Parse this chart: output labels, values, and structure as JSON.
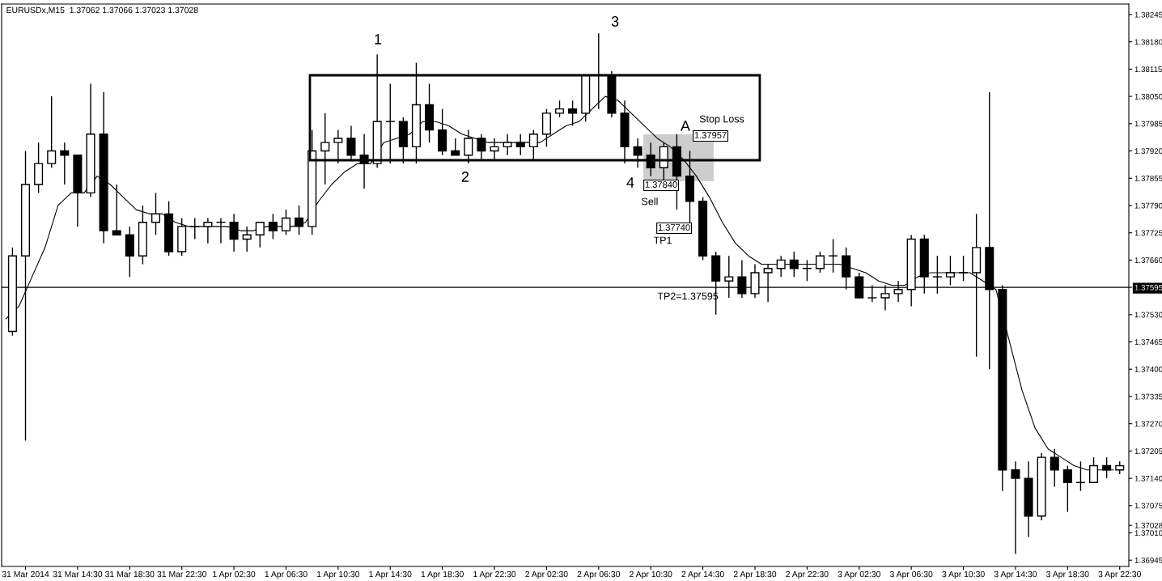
{
  "chart_data": {
    "type": "candlestick",
    "title": "EURUSDx,M15  1.37062 1.37066 1.37023 1.37028",
    "x": [
      "2014-03-31T09:30",
      "2014-03-31T10:30",
      "2014-03-31T11:30",
      "2014-03-31T12:30",
      "2014-03-31T13:30",
      "2014-03-31T14:30",
      "2014-03-31T15:30",
      "2014-03-31T16:30",
      "2014-03-31T17:30",
      "2014-03-31T18:30",
      "2014-03-31T19:30",
      "2014-03-31T20:30",
      "2014-03-31T21:30",
      "2014-03-31T22:30",
      "2014-03-31T23:30",
      "2014-04-01T00:30",
      "2014-04-01T01:30",
      "2014-04-01T02:30",
      "2014-04-01T03:30",
      "2014-04-01T04:30",
      "2014-04-01T05:30",
      "2014-04-01T06:30",
      "2014-04-01T07:30",
      "2014-04-01T08:30",
      "2014-04-01T09:30",
      "2014-04-01T10:30",
      "2014-04-01T11:30",
      "2014-04-01T12:30",
      "2014-04-01T13:30",
      "2014-04-01T14:30",
      "2014-04-01T15:30",
      "2014-04-01T16:30",
      "2014-04-01T17:30",
      "2014-04-01T18:30",
      "2014-04-01T19:30",
      "2014-04-01T20:30",
      "2014-04-01T21:30",
      "2014-04-01T22:30",
      "2014-04-01T23:30",
      "2014-04-02T00:30",
      "2014-04-02T01:30",
      "2014-04-02T02:30",
      "2014-04-02T03:30",
      "2014-04-02T04:30",
      "2014-04-02T05:30",
      "2014-04-02T06:30",
      "2014-04-02T07:30",
      "2014-04-02T08:30",
      "2014-04-02T09:30",
      "2014-04-02T10:30",
      "2014-04-02T11:30",
      "2014-04-02T12:30",
      "2014-04-02T13:30",
      "2014-04-02T14:30",
      "2014-04-02T15:30",
      "2014-04-02T16:30",
      "2014-04-02T17:30",
      "2014-04-02T18:30",
      "2014-04-02T19:30",
      "2014-04-02T20:30",
      "2014-04-02T21:30",
      "2014-04-02T22:30",
      "2014-04-02T23:30",
      "2014-04-03T00:30",
      "2014-04-03T01:30",
      "2014-04-03T02:30",
      "2014-04-03T03:30",
      "2014-04-03T04:30",
      "2014-04-03T05:30",
      "2014-04-03T06:30",
      "2014-04-03T07:30",
      "2014-04-03T08:30",
      "2014-04-03T09:30",
      "2014-04-03T10:30",
      "2014-04-03T11:30",
      "2014-04-03T12:30",
      "2014-04-03T13:30",
      "2014-04-03T14:30",
      "2014-04-03T15:30",
      "2014-04-03T16:30",
      "2014-04-03T17:30",
      "2014-04-03T18:30",
      "2014-04-03T19:30",
      "2014-04-03T20:30",
      "2014-04-03T21:30",
      "2014-04-03T22:30"
    ],
    "ohlc": [
      [
        1.3749,
        1.3769,
        1.3748,
        1.3767
      ],
      [
        1.3767,
        1.3792,
        1.3723,
        1.3784
      ],
      [
        1.3784,
        1.3794,
        1.3782,
        1.3789
      ],
      [
        1.3789,
        1.3805,
        1.3788,
        1.3792
      ],
      [
        1.3792,
        1.3794,
        1.3784,
        1.3791
      ],
      [
        1.3791,
        1.3791,
        1.3774,
        1.3782
      ],
      [
        1.3782,
        1.3808,
        1.3781,
        1.3796
      ],
      [
        1.3796,
        1.3806,
        1.377,
        1.3773
      ],
      [
        1.3773,
        1.3784,
        1.3772,
        1.3772
      ],
      [
        1.3772,
        1.3774,
        1.3762,
        1.3767
      ],
      [
        1.3767,
        1.3779,
        1.3765,
        1.3775
      ],
      [
        1.3775,
        1.3782,
        1.3772,
        1.3777
      ],
      [
        1.3777,
        1.378,
        1.3767,
        1.3768
      ],
      [
        1.3768,
        1.3776,
        1.3767,
        1.3774
      ],
      [
        1.3774,
        1.3776,
        1.3771,
        1.3774
      ],
      [
        1.3774,
        1.3776,
        1.377,
        1.3775
      ],
      [
        1.3775,
        1.3776,
        1.377,
        1.3775
      ],
      [
        1.3775,
        1.3777,
        1.3768,
        1.3771
      ],
      [
        1.3771,
        1.3774,
        1.3768,
        1.3772
      ],
      [
        1.3772,
        1.3775,
        1.3769,
        1.3775
      ],
      [
        1.3775,
        1.3777,
        1.3771,
        1.3773
      ],
      [
        1.3773,
        1.3778,
        1.3772,
        1.3776
      ],
      [
        1.3776,
        1.3779,
        1.3772,
        1.3774
      ],
      [
        1.3774,
        1.3797,
        1.3772,
        1.3792
      ],
      [
        1.3792,
        1.3801,
        1.3784,
        1.3794
      ],
      [
        1.3794,
        1.3797,
        1.3789,
        1.3795
      ],
      [
        1.3795,
        1.3798,
        1.379,
        1.3791
      ],
      [
        1.3791,
        1.3796,
        1.3783,
        1.3789
      ],
      [
        1.3789,
        1.3815,
        1.3788,
        1.3799
      ],
      [
        1.3799,
        1.3808,
        1.3789,
        1.3799
      ],
      [
        1.3799,
        1.38,
        1.3789,
        1.3793
      ],
      [
        1.3793,
        1.3813,
        1.3789,
        1.3803
      ],
      [
        1.3803,
        1.3808,
        1.3794,
        1.3797
      ],
      [
        1.3797,
        1.3802,
        1.3791,
        1.3792
      ],
      [
        1.3792,
        1.3795,
        1.3791,
        1.3791
      ],
      [
        1.3791,
        1.3797,
        1.3789,
        1.3795
      ],
      [
        1.3795,
        1.3796,
        1.379,
        1.3792
      ],
      [
        1.3792,
        1.3795,
        1.379,
        1.3793
      ],
      [
        1.3793,
        1.3796,
        1.3791,
        1.3794
      ],
      [
        1.3794,
        1.3796,
        1.3791,
        1.3793
      ],
      [
        1.3793,
        1.3797,
        1.379,
        1.3796
      ],
      [
        1.3796,
        1.3802,
        1.3793,
        1.3801
      ],
      [
        1.3801,
        1.3804,
        1.38,
        1.3802
      ],
      [
        1.3802,
        1.3804,
        1.3798,
        1.3801
      ],
      [
        1.3801,
        1.381,
        1.3799,
        1.381
      ],
      [
        1.381,
        1.382,
        1.3802,
        1.381
      ],
      [
        1.381,
        1.3811,
        1.38,
        1.3801
      ],
      [
        1.3801,
        1.3804,
        1.3789,
        1.3793
      ],
      [
        1.3793,
        1.3795,
        1.3788,
        1.3791
      ],
      [
        1.3791,
        1.3794,
        1.3786,
        1.3788
      ],
      [
        1.3788,
        1.3794,
        1.3784,
        1.3793
      ],
      [
        1.3793,
        1.3796,
        1.3778,
        1.3786
      ],
      [
        1.3786,
        1.3792,
        1.3774,
        1.378
      ],
      [
        1.378,
        1.3781,
        1.3766,
        1.3767
      ],
      [
        1.3767,
        1.3768,
        1.3753,
        1.3761
      ],
      [
        1.3761,
        1.3767,
        1.3757,
        1.3762
      ],
      [
        1.3762,
        1.3766,
        1.3757,
        1.3758
      ],
      [
        1.3758,
        1.3765,
        1.3757,
        1.3763
      ],
      [
        1.3763,
        1.3765,
        1.3756,
        1.3764
      ],
      [
        1.3764,
        1.3767,
        1.3762,
        1.3766
      ],
      [
        1.3766,
        1.3768,
        1.3762,
        1.3764
      ],
      [
        1.3764,
        1.3766,
        1.3761,
        1.3764
      ],
      [
        1.3764,
        1.3768,
        1.3763,
        1.3767
      ],
      [
        1.3767,
        1.3771,
        1.3763,
        1.3767
      ],
      [
        1.3767,
        1.3769,
        1.3759,
        1.3762
      ],
      [
        1.3762,
        1.3763,
        1.3757,
        1.3757
      ],
      [
        1.3757,
        1.376,
        1.3756,
        1.3757
      ],
      [
        1.3757,
        1.376,
        1.3754,
        1.3758
      ],
      [
        1.3758,
        1.3761,
        1.3756,
        1.3759
      ],
      [
        1.3759,
        1.3772,
        1.3755,
        1.3771
      ],
      [
        1.3771,
        1.3772,
        1.3758,
        1.3762
      ],
      [
        1.3762,
        1.3767,
        1.3758,
        1.3762
      ],
      [
        1.3762,
        1.3767,
        1.376,
        1.3763
      ],
      [
        1.3763,
        1.3767,
        1.3761,
        1.3763
      ],
      [
        1.3763,
        1.3777,
        1.3743,
        1.3769
      ],
      [
        1.3769,
        1.3806,
        1.374,
        1.3759
      ],
      [
        1.3759,
        1.376,
        1.3711,
        1.3716
      ],
      [
        1.3716,
        1.3718,
        1.3696,
        1.3714
      ],
      [
        1.3714,
        1.3718,
        1.37,
        1.3705
      ],
      [
        1.3705,
        1.372,
        1.3704,
        1.3719
      ],
      [
        1.3719,
        1.3721,
        1.3712,
        1.3716
      ],
      [
        1.3716,
        1.3717,
        1.3706,
        1.3713
      ],
      [
        1.3713,
        1.3718,
        1.3711,
        1.3713
      ],
      [
        1.3713,
        1.3719,
        1.3713,
        1.3717
      ],
      [
        1.3717,
        1.3719,
        1.3714,
        1.3716
      ],
      [
        1.3716,
        1.3718,
        1.3715,
        1.3717
      ]
    ],
    "series": [
      {
        "type": "line",
        "color": "#000000",
        "x": [
          "2014-03-31T09:00",
          "2014-03-31T10:00",
          "2014-03-31T11:00",
          "2014-03-31T12:00",
          "2014-03-31T13:00",
          "2014-03-31T14:00",
          "2014-03-31T15:00",
          "2014-03-31T16:00",
          "2014-03-31T17:00",
          "2014-03-31T18:00",
          "2014-03-31T19:00",
          "2014-03-31T20:00",
          "2014-03-31T21:00",
          "2014-03-31T22:00",
          "2014-03-31T23:00",
          "2014-04-01T00:00",
          "2014-04-01T01:00",
          "2014-04-01T02:00",
          "2014-04-01T03:00",
          "2014-04-01T04:00",
          "2014-04-01T05:00",
          "2014-04-01T06:00",
          "2014-04-01T07:00",
          "2014-04-01T08:00",
          "2014-04-01T09:00",
          "2014-04-01T10:00",
          "2014-04-01T11:00",
          "2014-04-01T12:00",
          "2014-04-01T13:00",
          "2014-04-01T14:00",
          "2014-04-01T15:00",
          "2014-04-01T16:00",
          "2014-04-01T17:00",
          "2014-04-01T18:00",
          "2014-04-01T19:00",
          "2014-04-01T20:00",
          "2014-04-01T21:00",
          "2014-04-01T22:00",
          "2014-04-01T23:00",
          "2014-04-02T00:00",
          "2014-04-02T01:00",
          "2014-04-02T02:00",
          "2014-04-02T03:00",
          "2014-04-02T04:00",
          "2014-04-02T05:00",
          "2014-04-02T06:00",
          "2014-04-02T07:00",
          "2014-04-02T08:00",
          "2014-04-02T09:00",
          "2014-04-02T10:00",
          "2014-04-02T11:00",
          "2014-04-02T12:00",
          "2014-04-02T13:00",
          "2014-04-02T14:00",
          "2014-04-02T15:00",
          "2014-04-02T16:00",
          "2014-04-02T17:00",
          "2014-04-02T18:00",
          "2014-04-02T19:00",
          "2014-04-02T20:00",
          "2014-04-02T21:00",
          "2014-04-02T22:00",
          "2014-04-02T23:00",
          "2014-04-03T00:00",
          "2014-04-03T01:00",
          "2014-04-03T02:00",
          "2014-04-03T03:00",
          "2014-04-03T04:00",
          "2014-04-03T05:00",
          "2014-04-03T06:00",
          "2014-04-03T07:00",
          "2014-04-03T08:00",
          "2014-04-03T09:00",
          "2014-04-03T10:00",
          "2014-04-03T11:00",
          "2014-04-03T12:00",
          "2014-04-03T13:00",
          "2014-04-03T14:00",
          "2014-04-03T15:00",
          "2014-04-03T16:00",
          "2014-04-03T17:00",
          "2014-04-03T18:00",
          "2014-04-03T19:00",
          "2014-04-03T20:00",
          "2014-04-03T21:00",
          "2014-04-03T22:00"
        ],
        "values": [
          1.3752,
          1.3755,
          1.3762,
          1.3769,
          1.3779,
          1.3782,
          1.3782,
          1.3786,
          1.3784,
          1.3781,
          1.3778,
          1.3777,
          1.3777,
          1.3775,
          1.3774,
          1.3774,
          1.3774,
          1.3774,
          1.3773,
          1.3773,
          1.3774,
          1.3774,
          1.3774,
          1.3775,
          1.378,
          1.3784,
          1.3787,
          1.3789,
          1.3789,
          1.3794,
          1.3795,
          1.3796,
          1.3799,
          1.3799,
          1.3798,
          1.3796,
          1.3795,
          1.3794,
          1.3794,
          1.3794,
          1.3794,
          1.3794,
          1.3796,
          1.3798,
          1.3799,
          1.3802,
          1.3805,
          1.3804,
          1.3801,
          1.3798,
          1.3795,
          1.3793,
          1.379,
          1.3786,
          1.3781,
          1.3775,
          1.377,
          1.3767,
          1.3765,
          1.3765,
          1.3765,
          1.3765,
          1.3765,
          1.3765,
          1.3765,
          1.3764,
          1.3763,
          1.3761,
          1.376,
          1.376,
          1.3762,
          1.3763,
          1.3763,
          1.3763,
          1.3763,
          1.3761,
          1.3759,
          1.3747,
          1.3735,
          1.3726,
          1.3721,
          1.3719,
          1.3717,
          1.3716,
          1.3716,
          1.3716
        ]
      }
    ],
    "xlim": [
      "2014-03-31T08:40",
      "2014-04-03T23:12"
    ],
    "xticks": [
      {
        "value": "2014-03-31T10:30",
        "label": "31 Mar 2014"
      },
      {
        "value": "2014-03-31T14:30",
        "label": "31 Mar 14:30"
      },
      {
        "value": "2014-03-31T18:30",
        "label": "31 Mar 18:30"
      },
      {
        "value": "2014-03-31T22:30",
        "label": "31 Mar 22:30"
      },
      {
        "value": "2014-04-01T02:30",
        "label": "1 Apr 02:30"
      },
      {
        "value": "2014-04-01T06:30",
        "label": "1 Apr 06:30"
      },
      {
        "value": "2014-04-01T10:30",
        "label": "1 Apr 10:30"
      },
      {
        "value": "2014-04-01T14:30",
        "label": "1 Apr 14:30"
      },
      {
        "value": "2014-04-01T18:30",
        "label": "1 Apr 18:30"
      },
      {
        "value": "2014-04-01T22:30",
        "label": "1 Apr 22:30"
      },
      {
        "value": "2014-04-02T02:30",
        "label": "2 Apr 02:30"
      },
      {
        "value": "2014-04-02T06:30",
        "label": "2 Apr 06:30"
      },
      {
        "value": "2014-04-02T10:30",
        "label": "2 Apr 10:30"
      },
      {
        "value": "2014-04-02T14:30",
        "label": "2 Apr 14:30"
      },
      {
        "value": "2014-04-02T18:30",
        "label": "2 Apr 18:30"
      },
      {
        "value": "2014-04-02T22:30",
        "label": "2 Apr 22:30"
      },
      {
        "value": "2014-04-03T02:30",
        "label": "3 Apr 02:30"
      },
      {
        "value": "2014-04-03T06:30",
        "label": "3 Apr 06:30"
      },
      {
        "value": "2014-04-03T10:30",
        "label": "3 Apr 10:30"
      },
      {
        "value": "2014-04-03T14:30",
        "label": "3 Apr 14:30"
      },
      {
        "value": "2014-04-03T18:30",
        "label": "3 Apr 18:30"
      },
      {
        "value": "2014-04-03T22:30",
        "label": "3 Apr 22:30"
      }
    ],
    "ylim": [
      1.3693,
      1.3827
    ],
    "yticks": [
      1.36945,
      {
        "value": 1.3701,
        "label": "1.37010"
      },
      1.37028,
      1.37075,
      {
        "value": 1.3714,
        "label": "1.37140"
      },
      1.37205,
      {
        "value": 1.3727,
        "label": "1.37270"
      },
      1.37335,
      {
        "value": 1.374,
        "label": "1.37400"
      },
      1.37465,
      {
        "value": 1.3753,
        "label": "1.37530"
      },
      1.37595,
      {
        "value": 1.3766,
        "label": "1.37660"
      },
      1.37725,
      {
        "value": 1.3779,
        "label": "1.37790"
      },
      1.37855,
      {
        "value": 1.3792,
        "label": "1.37920"
      },
      1.37985,
      {
        "value": 1.3805,
        "label": "1.38050"
      },
      1.38115,
      {
        "value": 1.3818,
        "label": "1.38180"
      },
      1.38245
    ],
    "ref_lines": [
      {
        "axis": "y",
        "value": 1.37595,
        "color": "#000000"
      }
    ],
    "annotations": [
      "1",
      "2",
      "3",
      "4",
      "A",
      "Stop Loss",
      "1.37957",
      "1.37840",
      "Sell",
      "1.37740",
      "TP1",
      "TP2=1.37595"
    ]
  }
}
